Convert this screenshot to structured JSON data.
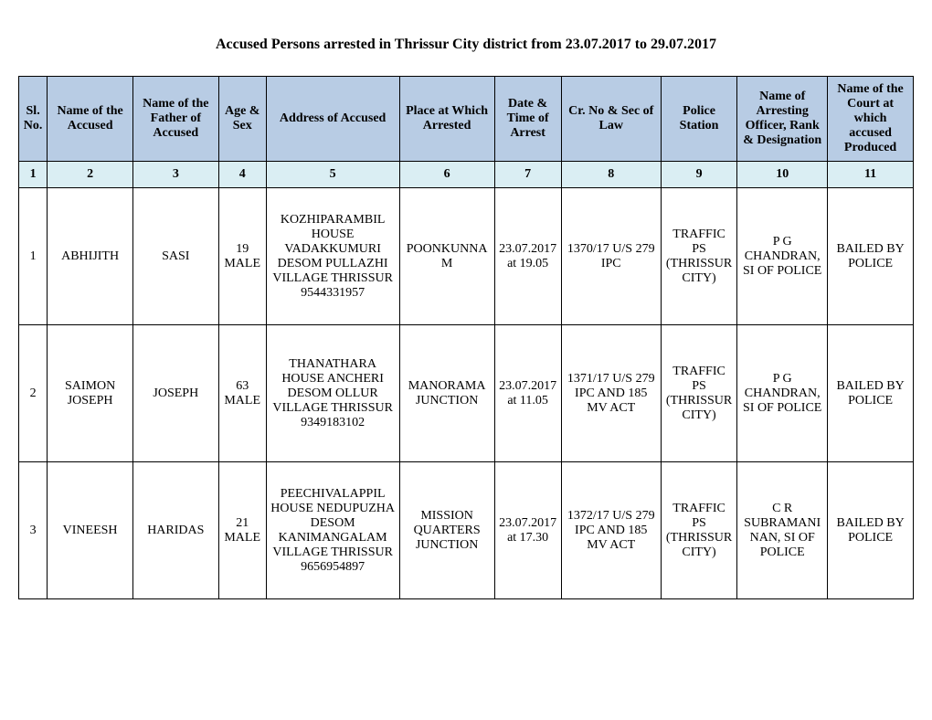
{
  "title": "Accused Persons arrested in    Thrissur City  district from   23.07.2017 to 29.07.2017",
  "headers": [
    "Sl. No.",
    "Name of the Accused",
    "Name of the Father of Accused",
    "Age & Sex",
    "Address of Accused",
    "Place at Which Arrested",
    "Date & Time of Arrest",
    "Cr. No & Sec of Law",
    "Police Station",
    "Name of Arresting Officer, Rank & Designation",
    "Name of the Court at which accused Produced"
  ],
  "numbers": [
    "1",
    "2",
    "3",
    "4",
    "5",
    "6",
    "7",
    "8",
    "9",
    "10",
    "11"
  ],
  "rows": [
    {
      "sl": "1",
      "accused": "ABHIJITH",
      "father": "SASI",
      "age_sex": "19 MALE",
      "address": "KOZHIPARAMBIL HOUSE VADAKKUMURI DESOM PULLAZHI VILLAGE THRISSUR 9544331957",
      "place": "POONKUNNAM",
      "datetime": "23.07.2017 at 19.05",
      "crno": "1370/17 U/S 279 IPC",
      "station": "TRAFFIC PS (THRISSUR CITY)",
      "officer": "P G CHANDRAN, SI OF POLICE",
      "court": "BAILED BY POLICE"
    },
    {
      "sl": "2",
      "accused": "SAIMON JOSEPH",
      "father": "JOSEPH",
      "age_sex": "63 MALE",
      "address": "THANATHARA HOUSE ANCHERI DESOM OLLUR VILLAGE THRISSUR 9349183102",
      "place": "MANORAMA JUNCTION",
      "datetime": "23.07.2017 at 11.05",
      "crno": "1371/17 U/S 279 IPC AND 185 MV ACT",
      "station": "TRAFFIC PS (THRISSUR CITY)",
      "officer": "P G CHANDRAN, SI OF POLICE",
      "court": "BAILED BY POLICE"
    },
    {
      "sl": "3",
      "accused": "VINEESH",
      "father": "HARIDAS",
      "age_sex": "21 MALE",
      "address": "PEECHIVALAPPIL HOUSE NEDUPUZHA DESOM KANIMANGALAM VILLAGE THRISSUR 9656954897",
      "place": "MISSION QUARTERS JUNCTION",
      "datetime": "23.07.2017 at 17.30",
      "crno": "1372/17 U/S 279 IPC AND 185 MV ACT",
      "station": "TRAFFIC PS (THRISSUR CITY)",
      "officer": "C R SUBRAMANINAN, SI OF POLICE",
      "court": "BAILED BY POLICE"
    }
  ]
}
